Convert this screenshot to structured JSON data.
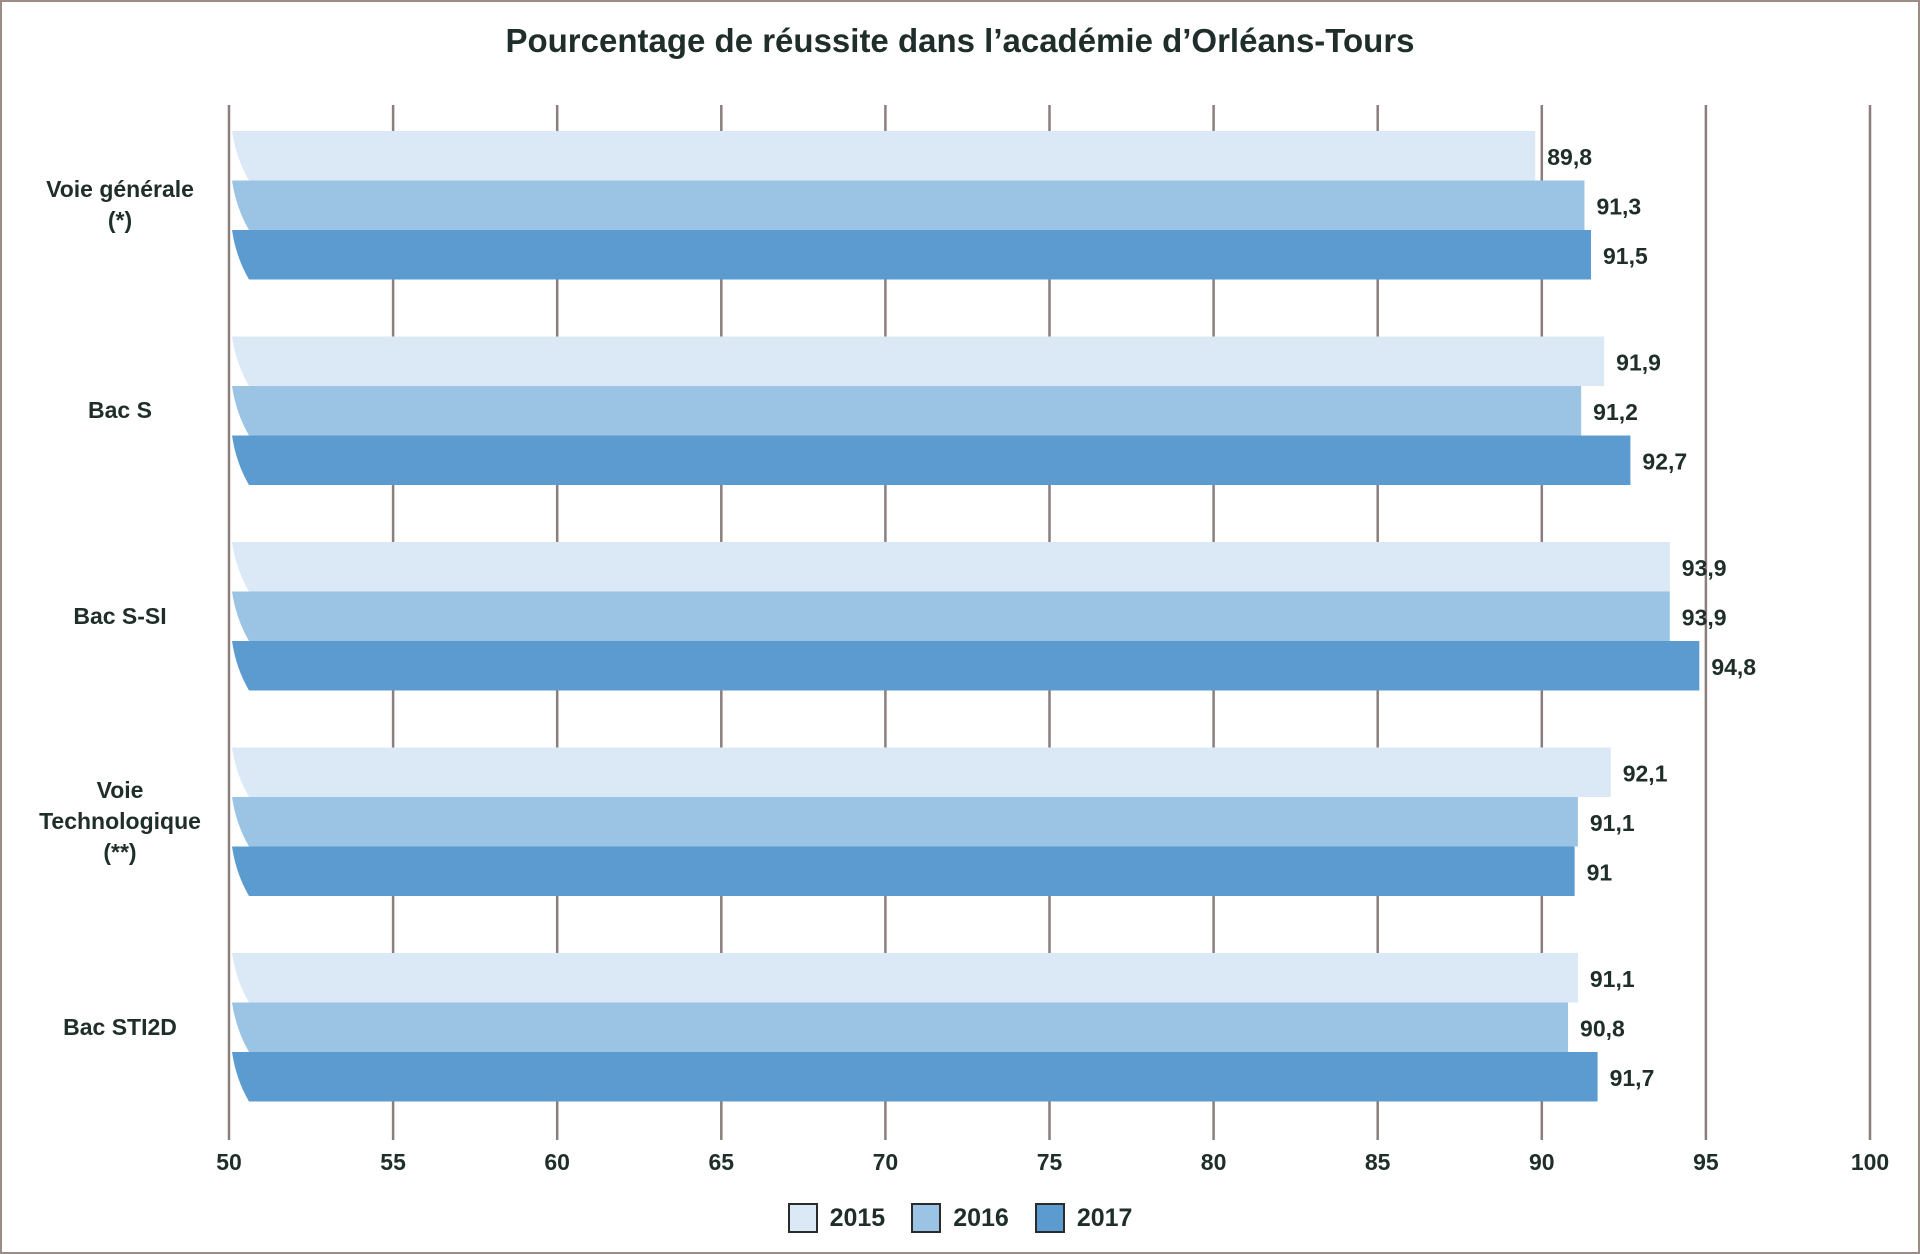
{
  "colors": {
    "2015": "#dbe8f5",
    "2016": "#9bc4e4",
    "2017": "#5b9bd0",
    "grid": "#8a7f7b",
    "text": "#1f2e2a"
  },
  "chart_data": {
    "type": "bar",
    "orientation": "horizontal",
    "title": "Pourcentage de réussite dans l’académie d’Orléans-Tours",
    "categories": [
      "Voie générale\n(*)",
      "Bac S",
      "Bac S-SI",
      "Voie\nTechnologique\n(**)",
      "Bac STI2D"
    ],
    "series": [
      {
        "name": "2015",
        "values": [
          89.8,
          91.9,
          93.9,
          92.1,
          91.1
        ],
        "labels": [
          "89,8",
          "91,9",
          "93,9",
          "92,1",
          "91,1"
        ]
      },
      {
        "name": "2016",
        "values": [
          91.3,
          91.2,
          93.9,
          91.1,
          90.8
        ],
        "labels": [
          "91,3",
          "91,2",
          "93,9",
          "91,1",
          "90,8"
        ]
      },
      {
        "name": "2017",
        "values": [
          91.5,
          92.7,
          94.8,
          91.0,
          91.7
        ],
        "labels": [
          "91,5",
          "92,7",
          "94,8",
          "91",
          "91,7"
        ]
      }
    ],
    "xlim": [
      50,
      100
    ],
    "xticks": [
      "50",
      "55",
      "60",
      "65",
      "70",
      "75",
      "80",
      "85",
      "90",
      "95",
      "100"
    ],
    "grid": true,
    "legend_position": "bottom-center"
  }
}
